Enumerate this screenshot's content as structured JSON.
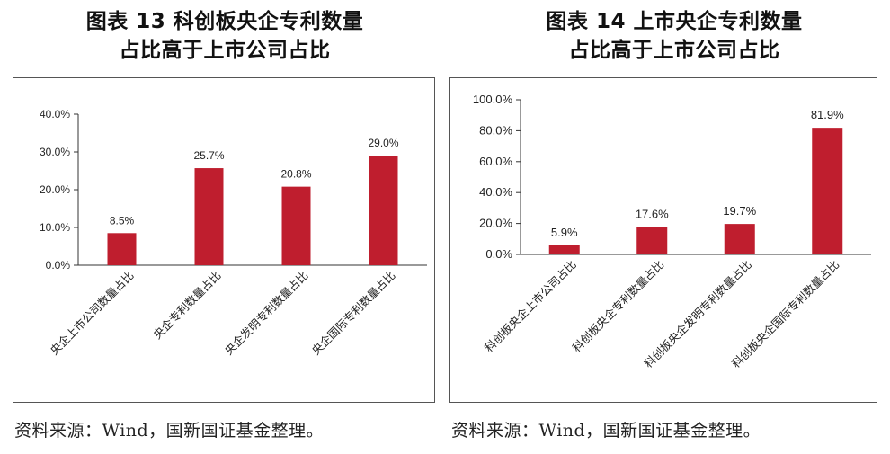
{
  "figures": [
    {
      "title_line1": "图表 13  科创板央企专利数量",
      "title_line2": "占比高于上市公司占比",
      "source": "资料来源：Wind，国新国证基金整理。",
      "chart_data": {
        "type": "bar",
        "categories": [
          "央企上市公司数量占比",
          "央企专利数量占比",
          "央企发明专利数量占比",
          "央企国际专利数量占比"
        ],
        "values": [
          8.5,
          25.7,
          20.8,
          29.0
        ],
        "value_labels": [
          "8.5%",
          "25.7%",
          "20.8%",
          "29.0%"
        ],
        "yticks": [
          0,
          10,
          20,
          30,
          40
        ],
        "ytick_labels": [
          "0.0%",
          "10.0%",
          "20.0%",
          "30.0%",
          "40.0%"
        ],
        "ylim": [
          0,
          40
        ],
        "bar_color": "#BF1E2E",
        "grid": false
      }
    },
    {
      "title_line1": "图表 14  上市央企专利数量",
      "title_line2": "占比高于上市公司占比",
      "source": "资料来源：Wind，国新国证基金整理。",
      "chart_data": {
        "type": "bar",
        "categories": [
          "科创板央企上市公司占比",
          "科创板央企专利数量占比",
          "科创板央企发明专利数量占比",
          "科创板央企国际专利数量占比"
        ],
        "values": [
          5.9,
          17.6,
          19.7,
          81.9
        ],
        "value_labels": [
          "5.9%",
          "17.6%",
          "19.7%",
          "81.9%"
        ],
        "yticks": [
          0,
          20,
          40,
          60,
          80,
          100
        ],
        "ytick_labels": [
          "0.0%",
          "20.0%",
          "40.0%",
          "60.0%",
          "80.0%",
          "100.0%"
        ],
        "ylim": [
          0,
          100
        ],
        "bar_color": "#BF1E2E",
        "grid": false
      }
    }
  ]
}
